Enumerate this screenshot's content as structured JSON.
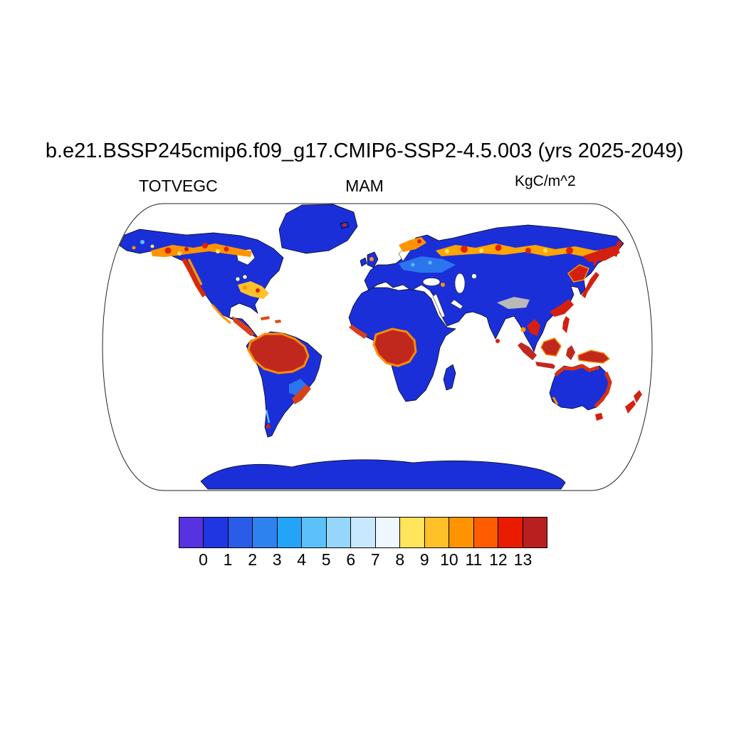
{
  "header": {
    "title": "b.e21.BSSP245cmip6.f09_g17.CMIP6-SSP2-4.5.003 (yrs 2025-2049)",
    "variable_label": "TOTVEGC",
    "season_label": "MAM",
    "units_label": "KgC/m^2"
  },
  "chart_data": {
    "type": "heatmap",
    "subtype": "filled-contour global map",
    "projection": "Robinson",
    "title": "b.e21.BSSP245cmip6.f09_g17.CMIP6-SSP2-4.5.003 (yrs 2025-2049)",
    "variable": "TOTVEGC (total vegetation carbon)",
    "season": "MAM",
    "units": "KgC/m^2",
    "colorbar": {
      "orientation": "horizontal",
      "position": "bottom",
      "tick_labels": [
        "0",
        "1",
        "2",
        "3",
        "4",
        "5",
        "6",
        "7",
        "8",
        "9",
        "10",
        "11",
        "12",
        "13"
      ],
      "colors": [
        "#5632e0",
        "#2036e2",
        "#2b5ce8",
        "#2e82f0",
        "#24a4f8",
        "#5cc0fa",
        "#96d6fb",
        "#c8e9fd",
        "#eef7fd",
        "#ffe45c",
        "#ffc02a",
        "#ff9400",
        "#ff5c00",
        "#ea1c00",
        "#b81f1f"
      ]
    },
    "map_colors": {
      "ocean": "#ffffff",
      "land_low": "#1b2fd9",
      "land_high": "#c0281e",
      "boreal_band": "#ff9400",
      "missing": "#b9b9b9"
    },
    "map_reading": {
      "ocean": "white (masked)",
      "high_values_gt_13": [
        "Amazon Basin",
        "Congo Basin",
        "Sumatra",
        "Borneo",
        "New Guinea",
        "Indochina",
        "Philippines",
        "Japan",
        "New Zealand",
        "eastern Australia coastal fringe",
        "Pacific Northwest"
      ],
      "moderate_values_8_13": [
        "boreal forest belt across Canada",
        "boreal belt across Scandinavia and Siberia",
        "eastern United States",
        "southern and northeastern China",
        "Central America and Caribbean"
      ],
      "low_values_0_2": [
        "Arctic tundra",
        "Greenland",
        "central Asia",
        "interior Australia",
        "Antarctica"
      ],
      "missing_gray": [
        "Tibetan Plateau"
      ]
    }
  }
}
